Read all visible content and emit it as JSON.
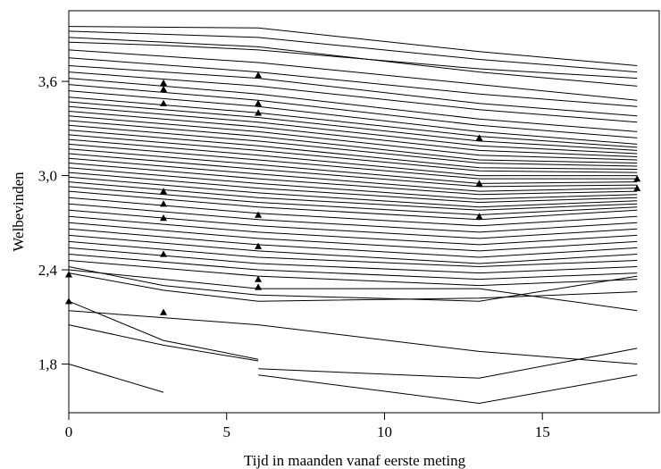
{
  "chart_data": {
    "type": "line",
    "title": "",
    "xlabel": "Tijd in maanden vanaf eerste meting",
    "ylabel": "Welbevinden",
    "xlim": [
      0,
      18.7
    ],
    "ylim": [
      1.49,
      4.05
    ],
    "x_ticks": [
      0,
      5,
      10,
      15
    ],
    "x_tick_labels": [
      "0",
      "5",
      "10",
      "15"
    ],
    "y_ticks": [
      1.8,
      2.4,
      3.0,
      3.6
    ],
    "y_tick_labels": [
      "1,8",
      "2,4",
      "3,0",
      "3,6"
    ],
    "grid": false,
    "legend": "none",
    "line_color": "#000000",
    "marker_color": "#000000",
    "measurement_times": [
      0,
      3,
      6,
      13,
      18
    ],
    "series": [
      {
        "x": [
          0,
          6,
          13,
          18
        ],
        "y": [
          3.95,
          3.94,
          3.79,
          3.7
        ]
      },
      {
        "x": [
          0,
          6,
          13,
          18
        ],
        "y": [
          3.92,
          3.88,
          3.74,
          3.66
        ]
      },
      {
        "x": [
          0,
          6,
          13,
          18
        ],
        "y": [
          3.88,
          3.82,
          3.66,
          3.57
        ]
      },
      {
        "x": [
          0,
          3,
          6,
          13,
          18
        ],
        "y": [
          3.85,
          3.83,
          3.8,
          3.68,
          3.62
        ]
      },
      {
        "x": [
          0,
          6,
          13,
          18
        ],
        "y": [
          3.8,
          3.72,
          3.58,
          3.48
        ]
      },
      {
        "x": [
          0,
          6,
          13,
          18
        ],
        "y": [
          3.75,
          3.66,
          3.52,
          3.44
        ]
      },
      {
        "x": [
          0,
          6,
          13,
          18
        ],
        "y": [
          3.7,
          3.62,
          3.46,
          3.38
        ]
      },
      {
        "x": [
          0,
          6,
          13,
          18
        ],
        "y": [
          3.66,
          3.57,
          3.42,
          3.34
        ]
      },
      {
        "x": [
          0,
          6,
          13,
          18
        ],
        "y": [
          3.62,
          3.52,
          3.36,
          3.28
        ]
      },
      {
        "x": [
          0,
          6,
          13,
          18
        ],
        "y": [
          3.58,
          3.48,
          3.32,
          3.24
        ]
      },
      {
        "x": [
          0,
          6,
          13,
          18
        ],
        "y": [
          3.54,
          3.44,
          3.28,
          3.2
        ]
      },
      {
        "x": [
          0,
          6,
          13,
          18
        ],
        "y": [
          3.5,
          3.4,
          3.25,
          3.18
        ]
      },
      {
        "x": [
          0,
          6,
          13,
          18
        ],
        "y": [
          3.47,
          3.37,
          3.22,
          3.16
        ]
      },
      {
        "x": [
          0,
          6,
          13,
          18
        ],
        "y": [
          3.44,
          3.34,
          3.19,
          3.14
        ]
      },
      {
        "x": [
          0,
          6,
          13,
          18
        ],
        "y": [
          3.41,
          3.31,
          3.16,
          3.12
        ]
      },
      {
        "x": [
          0,
          6,
          13,
          18
        ],
        "y": [
          3.38,
          3.28,
          3.13,
          3.1
        ]
      },
      {
        "x": [
          0,
          6,
          13,
          18
        ],
        "y": [
          3.35,
          3.25,
          3.1,
          3.08
        ]
      },
      {
        "x": [
          0,
          6,
          13,
          18
        ],
        "y": [
          3.32,
          3.22,
          3.08,
          3.06
        ]
      },
      {
        "x": [
          0,
          6,
          13,
          18
        ],
        "y": [
          3.29,
          3.19,
          3.05,
          3.04
        ]
      },
      {
        "x": [
          0,
          6,
          13,
          18
        ],
        "y": [
          3.26,
          3.16,
          3.03,
          3.02
        ]
      },
      {
        "x": [
          0,
          6,
          13,
          18
        ],
        "y": [
          3.23,
          3.13,
          3.0,
          3.0
        ]
      },
      {
        "x": [
          0,
          6,
          13,
          18
        ],
        "y": [
          3.2,
          3.1,
          2.98,
          2.98
        ]
      },
      {
        "x": [
          0,
          6,
          13,
          18
        ],
        "y": [
          3.17,
          3.07,
          2.95,
          2.96
        ]
      },
      {
        "x": [
          0,
          6,
          13,
          18
        ],
        "y": [
          3.14,
          3.04,
          2.93,
          2.94
        ]
      },
      {
        "x": [
          0,
          6,
          13,
          18
        ],
        "y": [
          3.11,
          3.01,
          2.9,
          2.92
        ]
      },
      {
        "x": [
          0,
          6,
          13,
          18
        ],
        "y": [
          3.08,
          2.98,
          2.88,
          2.9
        ]
      },
      {
        "x": [
          0,
          6,
          13,
          18
        ],
        "y": [
          3.05,
          2.95,
          2.85,
          2.88
        ]
      },
      {
        "x": [
          0,
          6,
          13,
          18
        ],
        "y": [
          3.02,
          2.92,
          2.83,
          2.86
        ]
      },
      {
        "x": [
          0,
          6,
          13,
          18
        ],
        "y": [
          2.99,
          2.89,
          2.8,
          2.84
        ]
      },
      {
        "x": [
          0,
          6,
          13,
          18
        ],
        "y": [
          2.96,
          2.86,
          2.78,
          2.82
        ]
      },
      {
        "x": [
          0,
          6,
          13,
          18
        ],
        "y": [
          2.93,
          2.83,
          2.75,
          2.8
        ]
      },
      {
        "x": [
          0,
          6,
          13,
          18
        ],
        "y": [
          2.9,
          2.8,
          2.72,
          2.78
        ]
      },
      {
        "x": [
          0,
          6,
          13,
          18
        ],
        "y": [
          2.86,
          2.76,
          2.68,
          2.74
        ]
      },
      {
        "x": [
          0,
          6,
          13,
          18
        ],
        "y": [
          2.82,
          2.72,
          2.64,
          2.7
        ]
      },
      {
        "x": [
          0,
          6,
          13,
          18
        ],
        "y": [
          2.78,
          2.68,
          2.6,
          2.66
        ]
      },
      {
        "x": [
          0,
          6,
          13,
          18
        ],
        "y": [
          2.74,
          2.64,
          2.56,
          2.62
        ]
      },
      {
        "x": [
          0,
          6,
          13,
          18
        ],
        "y": [
          2.7,
          2.6,
          2.52,
          2.58
        ]
      },
      {
        "x": [
          0,
          6,
          13,
          18
        ],
        "y": [
          2.66,
          2.56,
          2.48,
          2.54
        ]
      },
      {
        "x": [
          0,
          6,
          13,
          18
        ],
        "y": [
          2.62,
          2.52,
          2.44,
          2.5
        ]
      },
      {
        "x": [
          0,
          6,
          13,
          18
        ],
        "y": [
          2.58,
          2.48,
          2.42,
          2.46
        ]
      },
      {
        "x": [
          0,
          6,
          13,
          18
        ],
        "y": [
          2.54,
          2.44,
          2.38,
          2.42
        ]
      },
      {
        "x": [
          0,
          6,
          13,
          18
        ],
        "y": [
          2.5,
          2.4,
          2.34,
          2.38
        ]
      },
      {
        "x": [
          0,
          6,
          13,
          18
        ],
        "y": [
          2.46,
          2.36,
          2.3,
          2.34
        ]
      },
      {
        "x": [
          0,
          3,
          6,
          13,
          18
        ],
        "y": [
          2.42,
          2.3,
          2.24,
          2.2,
          2.36
        ]
      },
      {
        "x": [
          0,
          3,
          6,
          13,
          18
        ],
        "y": [
          2.38,
          2.27,
          2.2,
          2.22,
          2.26
        ]
      },
      {
        "x": [
          0,
          6,
          13,
          18
        ],
        "y": [
          2.4,
          2.28,
          2.28,
          2.14
        ]
      },
      {
        "x": [
          0,
          3,
          6
        ],
        "y": [
          2.2,
          1.95,
          1.83
        ]
      },
      {
        "x": [
          0,
          6,
          13,
          18
        ],
        "y": [
          2.14,
          2.05,
          1.88,
          1.8
        ]
      },
      {
        "x": [
          0,
          3,
          6
        ],
        "y": [
          2.05,
          1.92,
          1.82
        ]
      },
      {
        "x": [
          0,
          3
        ],
        "y": [
          1.8,
          1.62
        ]
      },
      {
        "x": [
          6,
          13,
          18
        ],
        "y": [
          1.77,
          1.71,
          1.9
        ]
      },
      {
        "x": [
          6,
          13,
          18
        ],
        "y": [
          1.73,
          1.55,
          1.73
        ]
      }
    ],
    "marker_points": [
      {
        "x": 3,
        "y": 3.59
      },
      {
        "x": 3,
        "y": 3.55
      },
      {
        "x": 3,
        "y": 3.46
      },
      {
        "x": 6,
        "y": 3.64
      },
      {
        "x": 6,
        "y": 3.46
      },
      {
        "x": 6,
        "y": 3.4
      },
      {
        "x": 3,
        "y": 2.9
      },
      {
        "x": 3,
        "y": 2.82
      },
      {
        "x": 3,
        "y": 2.73
      },
      {
        "x": 3,
        "y": 2.5
      },
      {
        "x": 3,
        "y": 2.13
      },
      {
        "x": 0,
        "y": 2.37
      },
      {
        "x": 0,
        "y": 2.2
      },
      {
        "x": 6,
        "y": 2.55
      },
      {
        "x": 6,
        "y": 2.34
      },
      {
        "x": 6,
        "y": 2.29
      },
      {
        "x": 6,
        "y": 2.75
      },
      {
        "x": 13,
        "y": 3.24
      },
      {
        "x": 13,
        "y": 2.95
      },
      {
        "x": 13,
        "y": 2.74
      },
      {
        "x": 18,
        "y": 2.98
      },
      {
        "x": 18,
        "y": 2.92
      }
    ]
  }
}
